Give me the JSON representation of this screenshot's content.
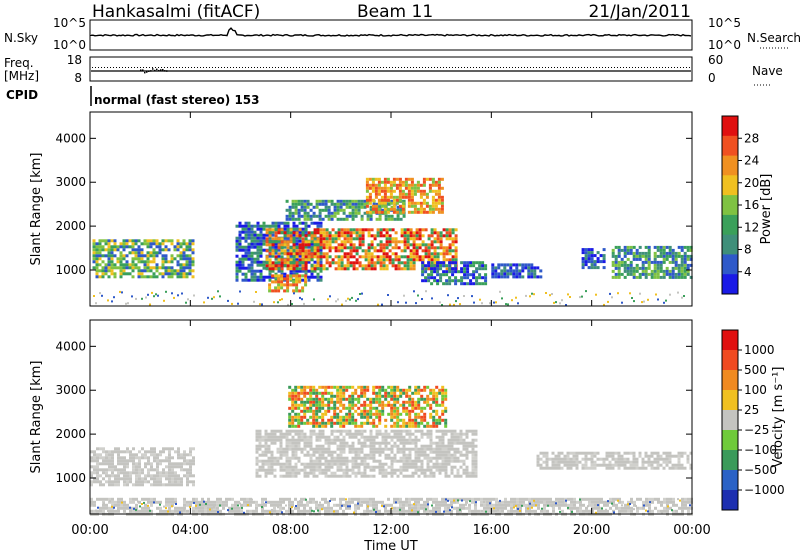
{
  "header": {
    "station": "Hankasalmi (fitACF)",
    "beam": "Beam 11",
    "date": "21/Jan/2011"
  },
  "noise_panel": {
    "left_label": "N.Sky",
    "right_label": "N.Search",
    "left_ticks": [
      "10^5",
      "10^0"
    ],
    "right_ticks": [
      "10^5",
      "10^0"
    ]
  },
  "freq_panel": {
    "left_label_1": "Freq.",
    "left_label_2": "[MHz]",
    "right_label": "Nave",
    "left_ticks": [
      "18",
      "8"
    ],
    "right_ticks": [
      "60",
      "0"
    ]
  },
  "cpid": {
    "label": "CPID",
    "program": "normal (fast stereo) 153"
  },
  "x_axis": {
    "label": "Time UT",
    "ticks": [
      "00:00",
      "04:00",
      "08:00",
      "12:00",
      "16:00",
      "20:00",
      "00:00"
    ]
  },
  "power_panel": {
    "ylabel": "Slant Range [km]",
    "yticks": [
      "4000",
      "3000",
      "2000",
      "1000"
    ],
    "colorbar_label": "Power [dB]",
    "colorbar_ticks": [
      "28",
      "24",
      "20",
      "16",
      "12",
      "8",
      "4"
    ]
  },
  "velocity_panel": {
    "ylabel": "Slant Range [km]",
    "yticks": [
      "4000",
      "3000",
      "2000",
      "1000"
    ],
    "colorbar_label": "Velocity [m s⁻¹]",
    "colorbar_ticks": [
      "1000",
      "500",
      "100",
      "25",
      "−25",
      "−100",
      "−500",
      "−1000"
    ]
  },
  "chart_data": {
    "type": "heatmap",
    "title": "Hankasalmi (fitACF)",
    "xlabel": "Time UT",
    "ylabel": "Slant Range [km]",
    "x_range_hours": [
      0,
      24
    ],
    "y_range_km": [
      180,
      4600
    ],
    "colors": {
      "power_scale": [
        "#1a1ae6",
        "#2f59c9",
        "#3f8f7a",
        "#3aa05a",
        "#7fc242",
        "#f0c020",
        "#f09020",
        "#f05020",
        "#e01010"
      ],
      "velocity_scale": [
        "#1d2fb0",
        "#2a62c6",
        "#3a9a5a",
        "#6fca3a",
        "#c4c4c0",
        "#f0c020",
        "#f08a20",
        "#f04a20",
        "#e01010"
      ]
    },
    "power_patches": [
      {
        "t0": 0.1,
        "t1": 4.1,
        "r0": 850,
        "r1": 1700,
        "level": "green-yellow"
      },
      {
        "t0": 5.8,
        "t1": 9.2,
        "r0": 800,
        "r1": 2100,
        "level": "blue-green"
      },
      {
        "t0": 7.0,
        "t1": 14.6,
        "r0": 1050,
        "r1": 1950,
        "level": "red-orange"
      },
      {
        "t0": 7.8,
        "t1": 12.5,
        "r0": 2150,
        "r1": 2600,
        "level": "green"
      },
      {
        "t0": 11.0,
        "t1": 14.0,
        "r0": 2300,
        "r1": 3100,
        "level": "orange"
      },
      {
        "t0": 13.2,
        "t1": 15.8,
        "r0": 700,
        "r1": 1200,
        "level": "blue-green"
      },
      {
        "t0": 7.1,
        "t1": 8.6,
        "r0": 550,
        "r1": 900,
        "level": "orange"
      },
      {
        "t0": 16.0,
        "t1": 18.0,
        "r0": 850,
        "r1": 1150,
        "level": "blue"
      },
      {
        "t0": 19.6,
        "t1": 20.5,
        "r0": 1050,
        "r1": 1500,
        "level": "blue"
      },
      {
        "t0": 20.8,
        "t1": 24.0,
        "r0": 850,
        "r1": 1550,
        "level": "green"
      }
    ],
    "velocity_patches": [
      {
        "t0": 0.0,
        "t1": 4.1,
        "r0": 850,
        "r1": 1700,
        "level": "gray"
      },
      {
        "t0": 6.6,
        "t1": 15.4,
        "r0": 1050,
        "r1": 2100,
        "level": "gray"
      },
      {
        "t0": 7.9,
        "t1": 14.2,
        "r0": 2150,
        "r1": 3100,
        "level": "orange-green"
      },
      {
        "t0": 17.8,
        "t1": 24.0,
        "r0": 1200,
        "r1": 1600,
        "level": "gray"
      },
      {
        "t0": 0.0,
        "t1": 24.0,
        "r0": 200,
        "r1": 550,
        "level": "gray"
      }
    ]
  }
}
